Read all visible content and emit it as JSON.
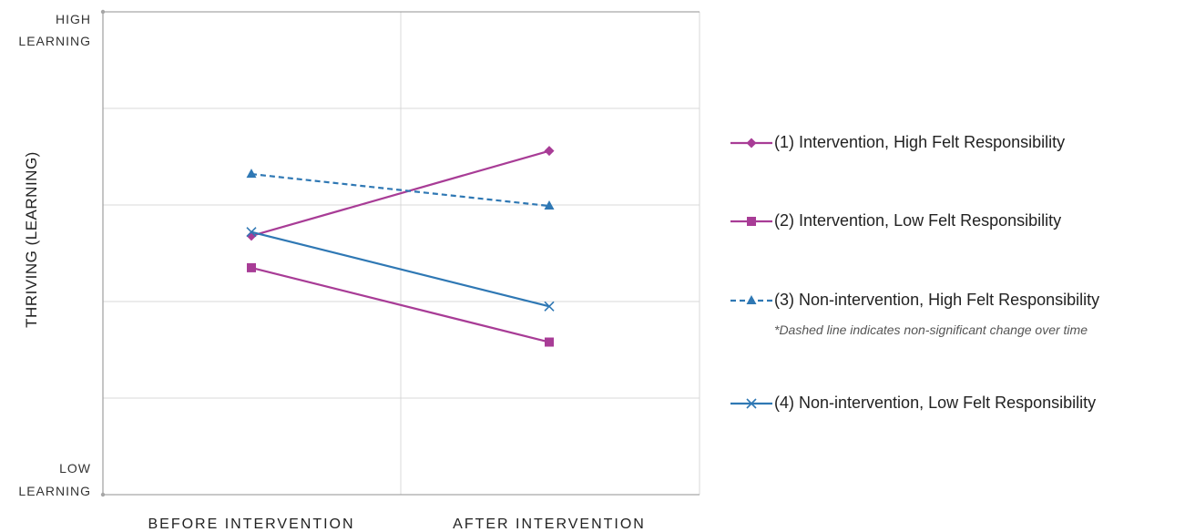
{
  "chart_data": {
    "type": "line",
    "categories": [
      "BEFORE INTERVENTION",
      "AFTER INTERVENTION"
    ],
    "ylabel": "THRIVING (LEARNING)",
    "y_top_label": [
      "HIGH",
      "LEARNING"
    ],
    "y_bottom_label": [
      "LOW",
      "LEARNING"
    ],
    "ylim": [
      0,
      5
    ],
    "grid": true,
    "legend_position": "right",
    "series": [
      {
        "name": "(1) Intervention, High Felt Responsibility",
        "values": [
          2.68,
          3.56
        ],
        "color": "#a83c96",
        "marker": "diamond",
        "dashed": false
      },
      {
        "name": "(2) Intervention, Low Felt Responsibility",
        "values": [
          2.35,
          1.58
        ],
        "color": "#a83c96",
        "marker": "square",
        "dashed": false
      },
      {
        "name": "(3) Non-intervention, High Felt Responsibility",
        "values": [
          3.32,
          2.99
        ],
        "color": "#2f78b4",
        "marker": "triangle",
        "dashed": true
      },
      {
        "name": "(4) Non-intervention, Low Felt Responsibility",
        "values": [
          2.72,
          1.95
        ],
        "color": "#2f78b4",
        "marker": "x",
        "dashed": false
      }
    ],
    "note": "*Dashed line indicates non-significant change over time"
  }
}
